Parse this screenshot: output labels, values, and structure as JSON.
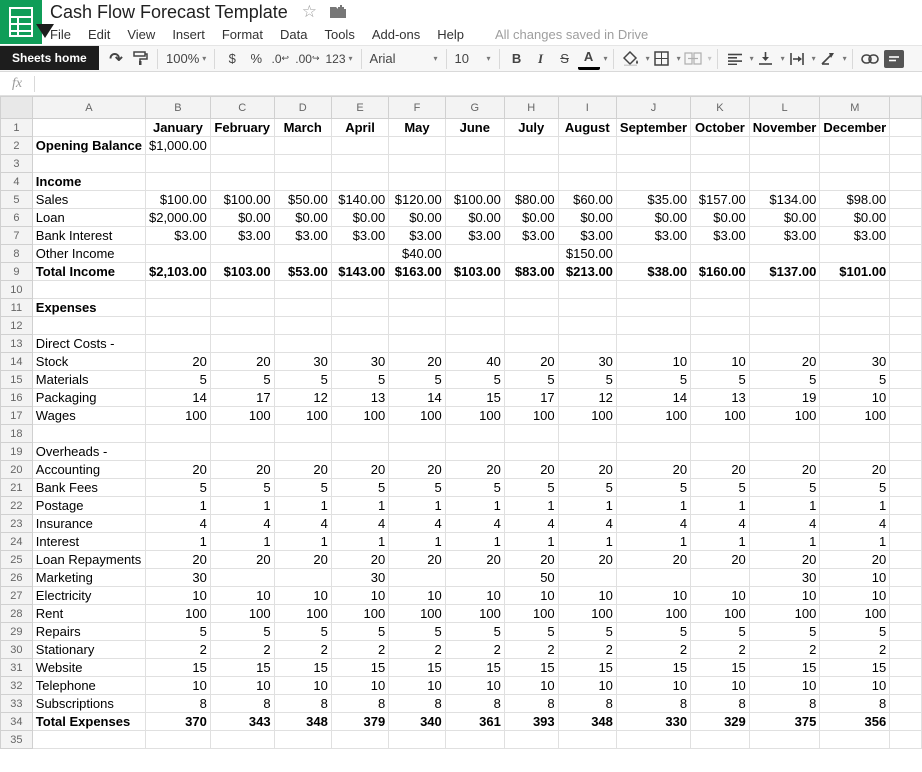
{
  "header": {
    "title": "Cash Flow Forecast Template",
    "menus": [
      "File",
      "Edit",
      "View",
      "Insert",
      "Format",
      "Data",
      "Tools",
      "Add-ons",
      "Help"
    ],
    "save_status": "All changes saved in Drive"
  },
  "toolbar": {
    "tooltip": "Sheets home",
    "undo": "↶",
    "redo": "↷",
    "zoom_level": "100%",
    "currency": "$",
    "percent": "%",
    "decimal_decrease": ".0",
    "decimal_increase": ".00",
    "more_formats": "123",
    "font_family": "Arial",
    "font_size": "10",
    "bold": "B",
    "italic": "I",
    "strikethrough": "S",
    "text_color": "A"
  },
  "formula_bar": {
    "fx_label": "fx",
    "value": ""
  },
  "colors": {
    "brand_green": "#0f9d58",
    "toolbar_bg": "#f7f7f7",
    "header_bg": "#f3f3f3",
    "gridline": "#e0e0e0",
    "tooltip_bg": "#1d1d1d"
  },
  "grid": {
    "column_letters": [
      "A",
      "B",
      "C",
      "D",
      "E",
      "F",
      "G",
      "H",
      "I",
      "J",
      "K",
      "L",
      "M"
    ],
    "month_headers": [
      "January",
      "February",
      "March",
      "April",
      "May",
      "June",
      "July",
      "August",
      "September",
      "October",
      "November",
      "December"
    ],
    "rows": [
      {
        "n": "1",
        "label": "",
        "style": "months",
        "cells": [
          "January",
          "February",
          "March",
          "April",
          "May",
          "June",
          "July",
          "August",
          "September",
          "October",
          "November",
          "December"
        ]
      },
      {
        "n": "2",
        "label": "Opening Balance",
        "labelBold": true,
        "cells": [
          "$1,000.00",
          "",
          "",
          "",
          "",
          "",
          "",
          "",
          "",
          "",
          "",
          ""
        ]
      },
      {
        "n": "3",
        "label": "",
        "cells": [
          "",
          "",
          "",
          "",
          "",
          "",
          "",
          "",
          "",
          "",
          "",
          ""
        ]
      },
      {
        "n": "4",
        "label": "Income",
        "labelBold": true,
        "cells": [
          "",
          "",
          "",
          "",
          "",
          "",
          "",
          "",
          "",
          "",
          "",
          ""
        ]
      },
      {
        "n": "5",
        "label": "Sales",
        "cells": [
          "$100.00",
          "$100.00",
          "$50.00",
          "$140.00",
          "$120.00",
          "$100.00",
          "$80.00",
          "$60.00",
          "$35.00",
          "$157.00",
          "$134.00",
          "$98.00"
        ]
      },
      {
        "n": "6",
        "label": "Loan",
        "cells": [
          "$2,000.00",
          "$0.00",
          "$0.00",
          "$0.00",
          "$0.00",
          "$0.00",
          "$0.00",
          "$0.00",
          "$0.00",
          "$0.00",
          "$0.00",
          "$0.00"
        ]
      },
      {
        "n": "7",
        "label": "Bank Interest",
        "cells": [
          "$3.00",
          "$3.00",
          "$3.00",
          "$3.00",
          "$3.00",
          "$3.00",
          "$3.00",
          "$3.00",
          "$3.00",
          "$3.00",
          "$3.00",
          "$3.00"
        ]
      },
      {
        "n": "8",
        "label": "Other Income",
        "cells": [
          "",
          "",
          "",
          "",
          "$40.00",
          "",
          "",
          "$150.00",
          "",
          "",
          "",
          ""
        ]
      },
      {
        "n": "9",
        "label": "Total Income",
        "labelBold": true,
        "cellsBold": true,
        "cells": [
          "$2,103.00",
          "$103.00",
          "$53.00",
          "$143.00",
          "$163.00",
          "$103.00",
          "$83.00",
          "$213.00",
          "$38.00",
          "$160.00",
          "$137.00",
          "$101.00"
        ]
      },
      {
        "n": "10",
        "label": "",
        "cells": [
          "",
          "",
          "",
          "",
          "",
          "",
          "",
          "",
          "",
          "",
          "",
          ""
        ]
      },
      {
        "n": "11",
        "label": "Expenses",
        "labelBold": true,
        "cells": [
          "",
          "",
          "",
          "",
          "",
          "",
          "",
          "",
          "",
          "",
          "",
          ""
        ]
      },
      {
        "n": "12",
        "label": "",
        "cells": [
          "",
          "",
          "",
          "",
          "",
          "",
          "",
          "",
          "",
          "",
          "",
          ""
        ]
      },
      {
        "n": "13",
        "label": "Direct Costs -",
        "cells": [
          "",
          "",
          "",
          "",
          "",
          "",
          "",
          "",
          "",
          "",
          "",
          ""
        ]
      },
      {
        "n": "14",
        "label": "Stock",
        "cells": [
          "20",
          "20",
          "30",
          "30",
          "20",
          "40",
          "20",
          "30",
          "10",
          "10",
          "20",
          "30"
        ]
      },
      {
        "n": "15",
        "label": "Materials",
        "cells": [
          "5",
          "5",
          "5",
          "5",
          "5",
          "5",
          "5",
          "5",
          "5",
          "5",
          "5",
          "5"
        ]
      },
      {
        "n": "16",
        "label": "Packaging",
        "cells": [
          "14",
          "17",
          "12",
          "13",
          "14",
          "15",
          "17",
          "12",
          "14",
          "13",
          "19",
          "10"
        ]
      },
      {
        "n": "17",
        "label": "Wages",
        "cells": [
          "100",
          "100",
          "100",
          "100",
          "100",
          "100",
          "100",
          "100",
          "100",
          "100",
          "100",
          "100"
        ]
      },
      {
        "n": "18",
        "label": "",
        "cells": [
          "",
          "",
          "",
          "",
          "",
          "",
          "",
          "",
          "",
          "",
          "",
          ""
        ]
      },
      {
        "n": "19",
        "label": "Overheads -",
        "cells": [
          "",
          "",
          "",
          "",
          "",
          "",
          "",
          "",
          "",
          "",
          "",
          ""
        ]
      },
      {
        "n": "20",
        "label": "Accounting",
        "cells": [
          "20",
          "20",
          "20",
          "20",
          "20",
          "20",
          "20",
          "20",
          "20",
          "20",
          "20",
          "20"
        ]
      },
      {
        "n": "21",
        "label": "Bank Fees",
        "cells": [
          "5",
          "5",
          "5",
          "5",
          "5",
          "5",
          "5",
          "5",
          "5",
          "5",
          "5",
          "5"
        ]
      },
      {
        "n": "22",
        "label": "Postage",
        "cells": [
          "1",
          "1",
          "1",
          "1",
          "1",
          "1",
          "1",
          "1",
          "1",
          "1",
          "1",
          "1"
        ]
      },
      {
        "n": "23",
        "label": "Insurance",
        "cells": [
          "4",
          "4",
          "4",
          "4",
          "4",
          "4",
          "4",
          "4",
          "4",
          "4",
          "4",
          "4"
        ]
      },
      {
        "n": "24",
        "label": "Interest",
        "cells": [
          "1",
          "1",
          "1",
          "1",
          "1",
          "1",
          "1",
          "1",
          "1",
          "1",
          "1",
          "1"
        ]
      },
      {
        "n": "25",
        "label": "Loan Repayments",
        "cells": [
          "20",
          "20",
          "20",
          "20",
          "20",
          "20",
          "20",
          "20",
          "20",
          "20",
          "20",
          "20"
        ]
      },
      {
        "n": "26",
        "label": "Marketing",
        "cells": [
          "30",
          "",
          "",
          "30",
          "",
          "",
          "50",
          "",
          "",
          "",
          "30",
          "10"
        ]
      },
      {
        "n": "27",
        "label": "Electricity",
        "cells": [
          "10",
          "10",
          "10",
          "10",
          "10",
          "10",
          "10",
          "10",
          "10",
          "10",
          "10",
          "10"
        ]
      },
      {
        "n": "28",
        "label": "Rent",
        "cells": [
          "100",
          "100",
          "100",
          "100",
          "100",
          "100",
          "100",
          "100",
          "100",
          "100",
          "100",
          "100"
        ]
      },
      {
        "n": "29",
        "label": "Repairs",
        "cells": [
          "5",
          "5",
          "5",
          "5",
          "5",
          "5",
          "5",
          "5",
          "5",
          "5",
          "5",
          "5"
        ]
      },
      {
        "n": "30",
        "label": "Stationary",
        "cells": [
          "2",
          "2",
          "2",
          "2",
          "2",
          "2",
          "2",
          "2",
          "2",
          "2",
          "2",
          "2"
        ]
      },
      {
        "n": "31",
        "label": "Website",
        "cells": [
          "15",
          "15",
          "15",
          "15",
          "15",
          "15",
          "15",
          "15",
          "15",
          "15",
          "15",
          "15"
        ]
      },
      {
        "n": "32",
        "label": "Telephone",
        "cells": [
          "10",
          "10",
          "10",
          "10",
          "10",
          "10",
          "10",
          "10",
          "10",
          "10",
          "10",
          "10"
        ]
      },
      {
        "n": "33",
        "label": "Subscriptions",
        "cells": [
          "8",
          "8",
          "8",
          "8",
          "8",
          "8",
          "8",
          "8",
          "8",
          "8",
          "8",
          "8"
        ]
      },
      {
        "n": "34",
        "label": "Total Expenses",
        "labelBold": true,
        "cellsBold": true,
        "cells": [
          "370",
          "343",
          "348",
          "379",
          "340",
          "361",
          "393",
          "348",
          "330",
          "329",
          "375",
          "356"
        ]
      },
      {
        "n": "35",
        "label": "",
        "cells": [
          "",
          "",
          "",
          "",
          "",
          "",
          "",
          "",
          "",
          "",
          "",
          ""
        ]
      }
    ]
  }
}
